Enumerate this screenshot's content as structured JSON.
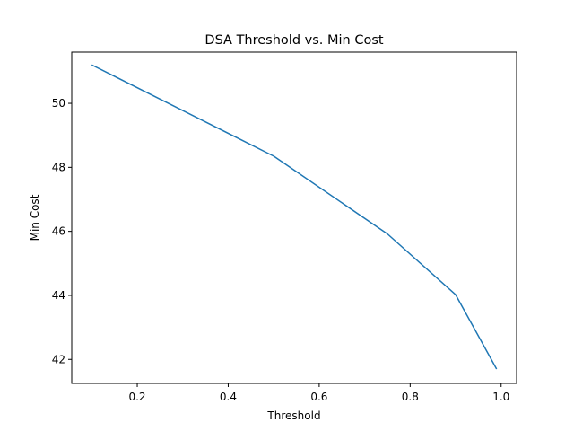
{
  "chart_data": {
    "type": "line",
    "title": "DSA Threshold vs. Min Cost",
    "xlabel": "Threshold",
    "ylabel": "Min Cost",
    "xlim": [
      0.056,
      1.034
    ],
    "ylim": [
      41.25,
      51.6
    ],
    "xticks": [
      0.2,
      0.4,
      0.6,
      0.8,
      1.0
    ],
    "xtick_labels": [
      "0.2",
      "0.4",
      "0.6",
      "0.8",
      "1.0"
    ],
    "yticks": [
      42,
      44,
      46,
      48,
      50
    ],
    "ytick_labels": [
      "42",
      "44",
      "46",
      "48",
      "50"
    ],
    "grid": false,
    "series": [
      {
        "color": "#1f77b4",
        "x": [
          0.1,
          0.5,
          0.75,
          0.9,
          0.99
        ],
        "y": [
          51.2,
          48.35,
          45.92,
          44.02,
          41.7
        ]
      }
    ]
  }
}
